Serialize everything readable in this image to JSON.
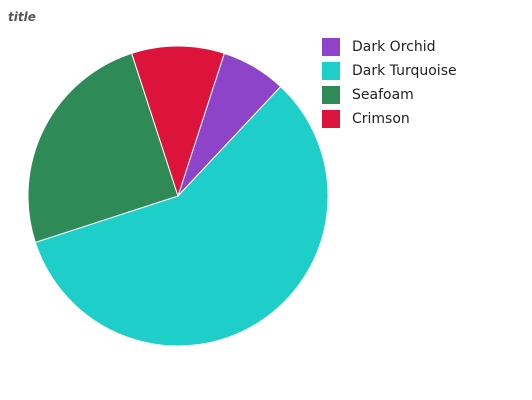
{
  "chart_data": {
    "type": "pie",
    "title": "title",
    "categories": [
      "Dark Orchid",
      "Dark Turquoise",
      "Seafoam",
      "Crimson"
    ],
    "values": [
      7,
      58,
      25,
      10
    ],
    "colors": [
      "#8e44c9",
      "#1ecfc9",
      "#2e8b57",
      "#dc143c"
    ],
    "legend_position": "right",
    "start_angle_deg": 18,
    "direction": "clockwise"
  }
}
